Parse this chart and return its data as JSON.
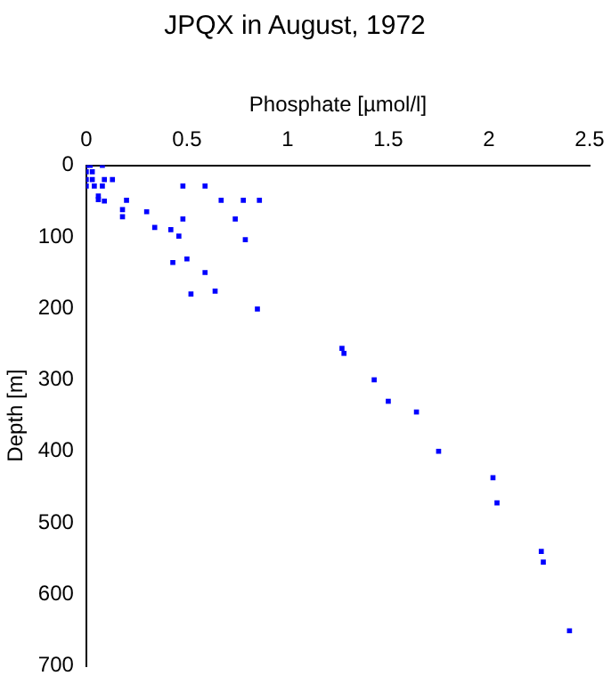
{
  "chart_data": {
    "type": "scatter",
    "title": "JPQX in August, 1972",
    "xlabel": "Phosphate [µmol/l]",
    "ylabel": "Depth [m]",
    "xlim": [
      0,
      2.5
    ],
    "xticks": [
      0,
      0.5,
      1,
      1.5,
      2,
      2.5
    ],
    "ylim": [
      700,
      0
    ],
    "yticks": [
      0,
      100,
      200,
      300,
      400,
      500,
      600,
      700
    ],
    "grid": false,
    "legend": false,
    "marker": "square",
    "series": [
      {
        "color": "#0000ff",
        "x": [
          0,
          0.02,
          0.08,
          0,
          0.03,
          0,
          0.03,
          0.09,
          0.13,
          0,
          0.04,
          0.08,
          0.48,
          0.59,
          0.06,
          0.06,
          0.09,
          0.2,
          0.67,
          0.78,
          0.86,
          0.18,
          0.18,
          0.3,
          0.34,
          0.42,
          0.48,
          0.46,
          0.74,
          0.79,
          0.5,
          0.43,
          0.59,
          0.52,
          0.64,
          0.85,
          1.27,
          1.28,
          1.43,
          1.5,
          1.64,
          1.75,
          2.02,
          2.04,
          2.26,
          2.27,
          2.4
        ],
        "values": [
          0,
          0,
          0,
          9,
          9,
          20,
          20,
          20,
          20,
          29,
          29,
          29,
          29,
          29,
          43,
          48,
          50,
          49,
          49,
          49,
          49,
          62,
          72,
          65,
          87,
          90,
          75,
          99,
          75,
          104,
          131,
          136,
          150,
          180,
          176,
          201,
          256,
          263,
          300,
          330,
          345,
          400,
          437,
          472,
          540,
          555,
          651
        ]
      }
    ]
  }
}
